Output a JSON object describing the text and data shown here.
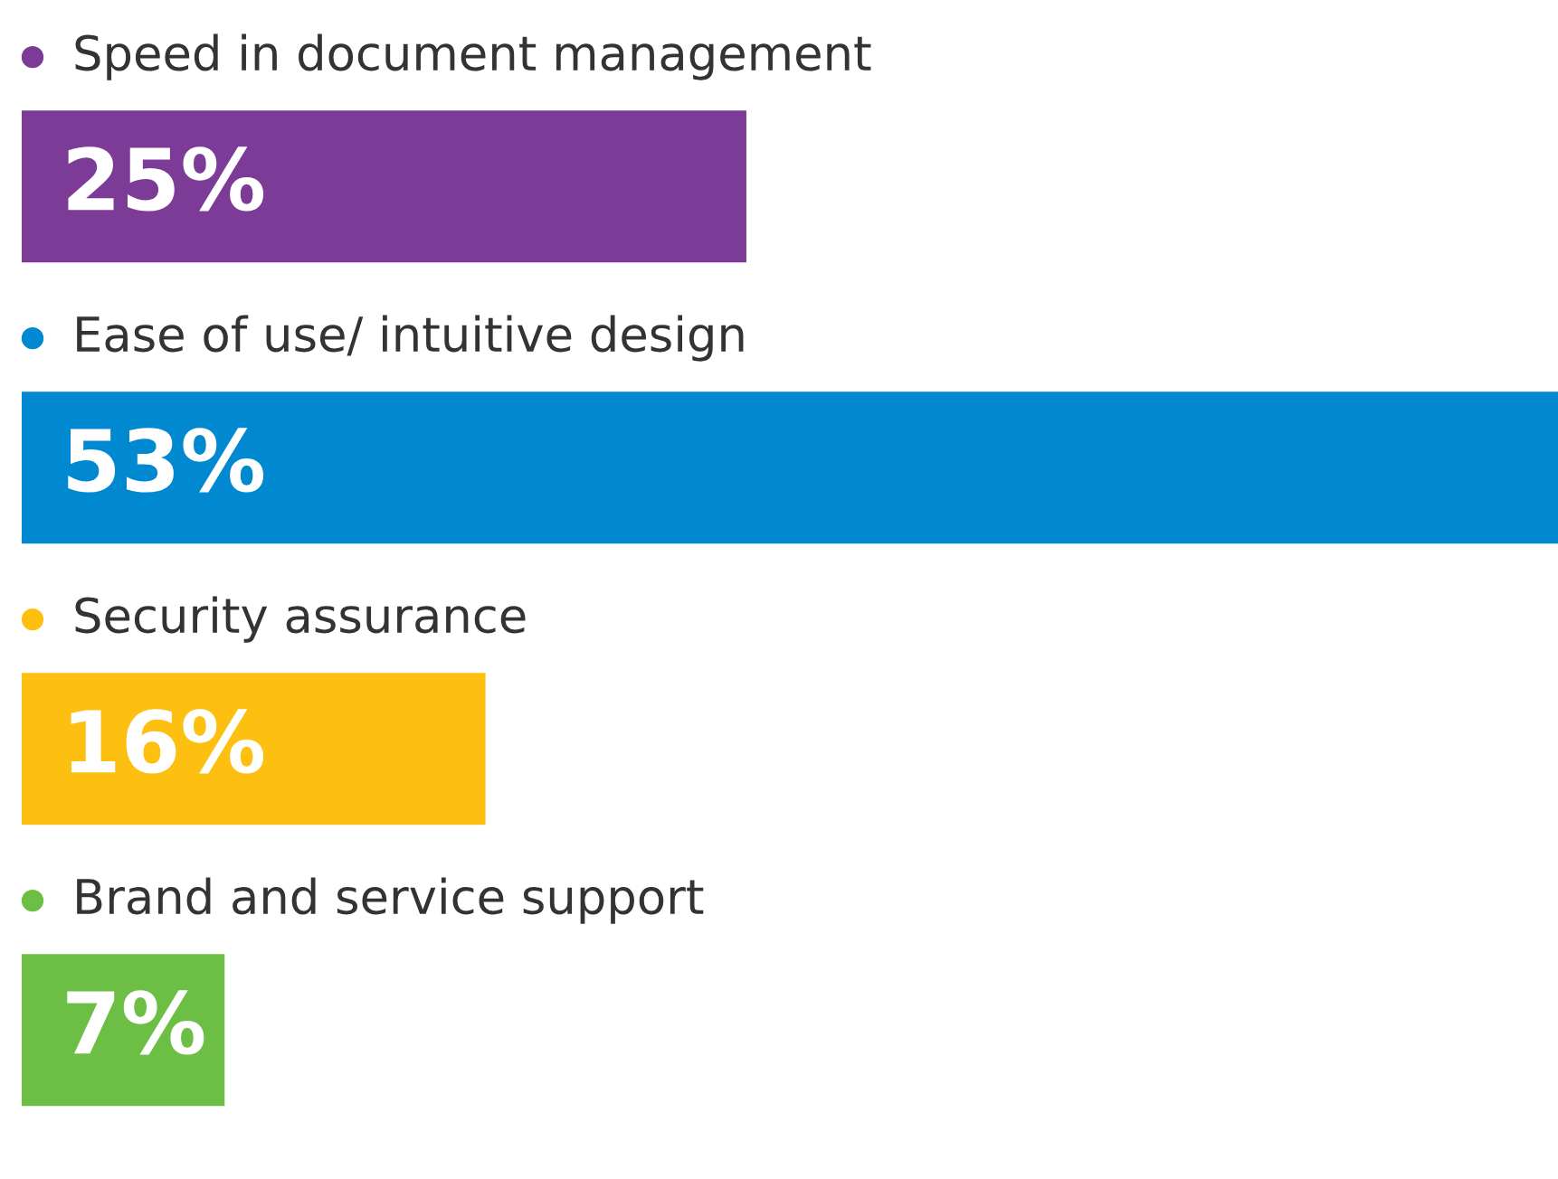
{
  "chart_data": {
    "type": "bar",
    "orientation": "horizontal",
    "categories": [
      "Speed in document management",
      "Ease of use/ intuitive design",
      "Security assurance",
      "Brand and service support"
    ],
    "values": [
      25,
      53,
      16,
      7
    ],
    "colors": [
      "#7b3b96",
      "#0088d1",
      "#fdc010",
      "#6cbe45"
    ],
    "value_labels": [
      "25%",
      "53%",
      "16%",
      "7%"
    ]
  }
}
